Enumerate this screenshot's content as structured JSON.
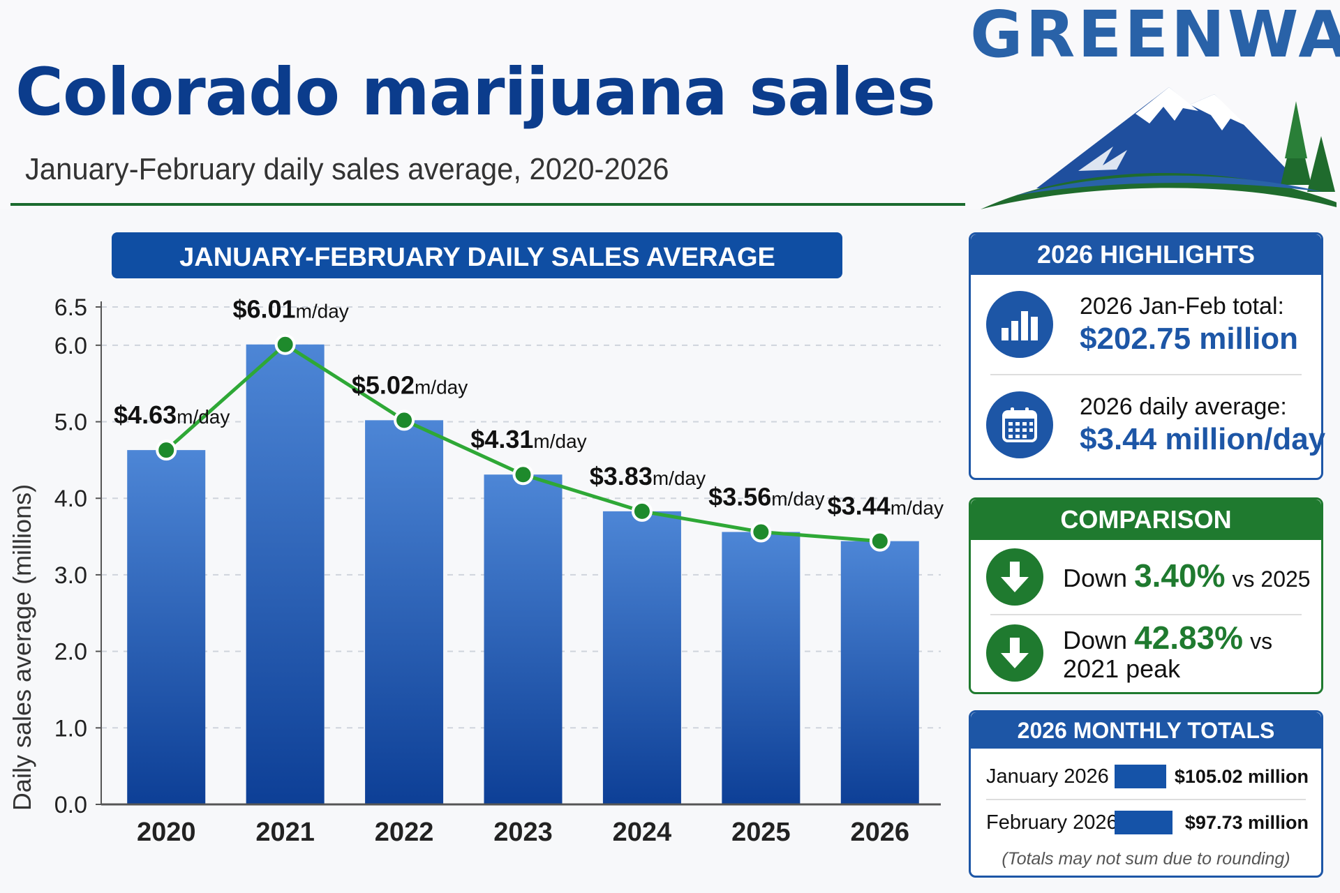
{
  "header": {
    "title": "Colorado marijuana sales",
    "subtitle": "January-February daily sales average, 2020-2026",
    "brand": "GREENWAY"
  },
  "colors": {
    "title_blue": "#0b3c8c",
    "bar_blue": "#1553a8",
    "line_green": "#2ea836",
    "panel_blue": "#1d56a6",
    "panel_green": "#1f7a2f"
  },
  "chart_data": {
    "type": "bar",
    "title": "JANUARY-FEBRUARY DAILY SALES AVERAGE",
    "ylabel": "Daily sales average (millions)",
    "xlabel": "",
    "categories": [
      "2020",
      "2021",
      "2022",
      "2023",
      "2024",
      "2025",
      "2026"
    ],
    "values": [
      4.63,
      6.01,
      5.02,
      4.31,
      3.83,
      3.56,
      3.44
    ],
    "data_labels": [
      {
        "amount": "$4.63",
        "unit": "m/day"
      },
      {
        "amount": "$6.01",
        "unit": "m/day"
      },
      {
        "amount": "$5.02",
        "unit": "m/day"
      },
      {
        "amount": "$4.31",
        "unit": "m/day"
      },
      {
        "amount": "$3.83",
        "unit": "m/day"
      },
      {
        "amount": "$3.56",
        "unit": "m/day"
      },
      {
        "amount": "$3.44",
        "unit": "m/day"
      }
    ],
    "overlay": "line with markers through bar values",
    "yticks": [
      "0.0",
      "1.0",
      "2.0",
      "3.0",
      "4.0",
      "5.0",
      "6.0",
      "6.5"
    ],
    "ytick_values": [
      0,
      1,
      2,
      3,
      4,
      5,
      6,
      6.5
    ],
    "ylim": [
      0,
      6.5
    ],
    "grid": true,
    "legend": "none"
  },
  "highlights": {
    "title": "2026 HIGHLIGHTS",
    "items": [
      {
        "label": "2026 Jan-Feb total:",
        "value": "$202.75 million",
        "icon": "bar-chart-icon"
      },
      {
        "label": "2026 daily average:",
        "value": "$3.44 million/day",
        "icon": "calendar-icon"
      }
    ]
  },
  "comparison": {
    "title": "COMPARISON",
    "items": [
      {
        "prefix": "Down",
        "pct": "3.40%",
        "suffix": "vs 2025",
        "line2": ""
      },
      {
        "prefix": "Down",
        "pct": "42.83%",
        "suffix": "vs",
        "line2": "2021 peak"
      }
    ]
  },
  "monthly": {
    "title": "2026 MONTHLY TOTALS",
    "rows": [
      {
        "label": "January 2026",
        "value": "$105.02 million",
        "amount": 105.02
      },
      {
        "label": "February 2026",
        "value": "$97.73 million",
        "amount": 97.73
      }
    ],
    "note": "(Totals may not sum due to rounding)"
  }
}
